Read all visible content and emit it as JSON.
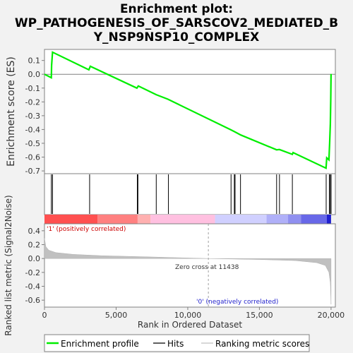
{
  "chart_data": {
    "type": "line",
    "title_lines": [
      "Enrichment plot:",
      "WP_PATHOGENESIS_OF_SARSCOV2_MEDIATED_B",
      "Y_NSP9NSP10_COMPLEX"
    ],
    "es_panel": {
      "ylabel": "Enrichment score (ES)",
      "ylim": [
        -0.72,
        0.18
      ],
      "yticks": [
        0.1,
        0.0,
        -0.1,
        -0.2,
        -0.3,
        -0.4,
        -0.5,
        -0.6,
        -0.7
      ],
      "ytick_labels": [
        "0.1",
        "0.0",
        "-0.1",
        "-0.2",
        "-0.3",
        "-0.4",
        "-0.5",
        "-0.6",
        "-0.7"
      ],
      "curve_color": "#00ee00",
      "points": [
        [
          0,
          0.0
        ],
        [
          480,
          -0.025
        ],
        [
          500,
          0.065
        ],
        [
          560,
          0.16
        ],
        [
          3100,
          0.032
        ],
        [
          3200,
          0.058
        ],
        [
          6450,
          -0.1
        ],
        [
          6550,
          -0.085
        ],
        [
          7800,
          -0.148
        ],
        [
          8600,
          -0.18
        ],
        [
          13000,
          -0.402
        ],
        [
          13300,
          -0.418
        ],
        [
          13700,
          -0.44
        ],
        [
          16200,
          -0.547
        ],
        [
          16400,
          -0.545
        ],
        [
          17300,
          -0.58
        ],
        [
          17350,
          -0.567
        ],
        [
          19650,
          -0.68
        ],
        [
          19700,
          -0.605
        ],
        [
          19850,
          -0.62
        ],
        [
          19900,
          -0.5
        ],
        [
          19950,
          -0.36
        ],
        [
          19980,
          -0.18
        ],
        [
          20000,
          0.002
        ]
      ]
    },
    "hits": [
      480,
      560,
      3150,
      6480,
      6520,
      7800,
      8650,
      13020,
      13250,
      13300,
      13680,
      16200,
      16400,
      17300,
      19660,
      19880,
      19950,
      20000
    ],
    "rank_bar": {
      "segments": [
        {
          "start": 0,
          "end": 3700,
          "color": "#ff5050"
        },
        {
          "start": 3700,
          "end": 6500,
          "color": "#ff8080"
        },
        {
          "start": 6500,
          "end": 7400,
          "color": "#ffb0b0"
        },
        {
          "start": 7400,
          "end": 11900,
          "color": "#ffc0e0"
        },
        {
          "start": 11900,
          "end": 15500,
          "color": "#d0d0ff"
        },
        {
          "start": 15500,
          "end": 17000,
          "color": "#b0b0f8"
        },
        {
          "start": 17000,
          "end": 17900,
          "color": "#9090f0"
        },
        {
          "start": 17900,
          "end": 19700,
          "color": "#6868e8"
        },
        {
          "start": 19700,
          "end": 20000,
          "color": "#2020d0"
        }
      ]
    },
    "metric_panel": {
      "ylabel": "Ranked list metric (Signal2Noise)",
      "ylim": [
        -0.7,
        0.5
      ],
      "yticks": [
        0.4,
        0.2,
        0.0,
        -0.2,
        -0.4,
        -0.6
      ],
      "ytick_labels": [
        "0.4",
        "0.2",
        "0.0",
        "-0.2",
        "-0.4",
        "-0.6"
      ],
      "fill_color": "#c0c0c0",
      "profile": [
        [
          0,
          0.29
        ],
        [
          100,
          0.17
        ],
        [
          300,
          0.12
        ],
        [
          800,
          0.085
        ],
        [
          2000,
          0.06
        ],
        [
          4000,
          0.04
        ],
        [
          7000,
          0.025
        ],
        [
          11438,
          0.0
        ],
        [
          15000,
          -0.015
        ],
        [
          17500,
          -0.03
        ],
        [
          19000,
          -0.06
        ],
        [
          19600,
          -0.1
        ],
        [
          19850,
          -0.2
        ],
        [
          19950,
          -0.35
        ],
        [
          20000,
          -0.66
        ]
      ],
      "zero_cross": 11438,
      "zero_cross_label": "Zero cross at 11438",
      "pos_label": "'1' (positively correlated)",
      "neg_label": "'0' (negatively correlated)"
    },
    "x_axis": {
      "xlabel": "Rank in Ordered Dataset",
      "xlim": [
        0,
        20300
      ],
      "xticks": [
        0,
        5000,
        10000,
        15000,
        20000
      ],
      "xtick_labels": [
        "0",
        "5,000",
        "10,000",
        "15,000",
        "20,000"
      ]
    },
    "legend": {
      "placement": "bottom",
      "items": [
        {
          "label": "Enrichment profile",
          "color": "#00ee00",
          "kind": "thick-line"
        },
        {
          "label": "Hits",
          "color": "#000000",
          "kind": "line"
        },
        {
          "label": "Ranking metric scores",
          "color": "#c0c0c0",
          "kind": "line"
        }
      ]
    }
  }
}
